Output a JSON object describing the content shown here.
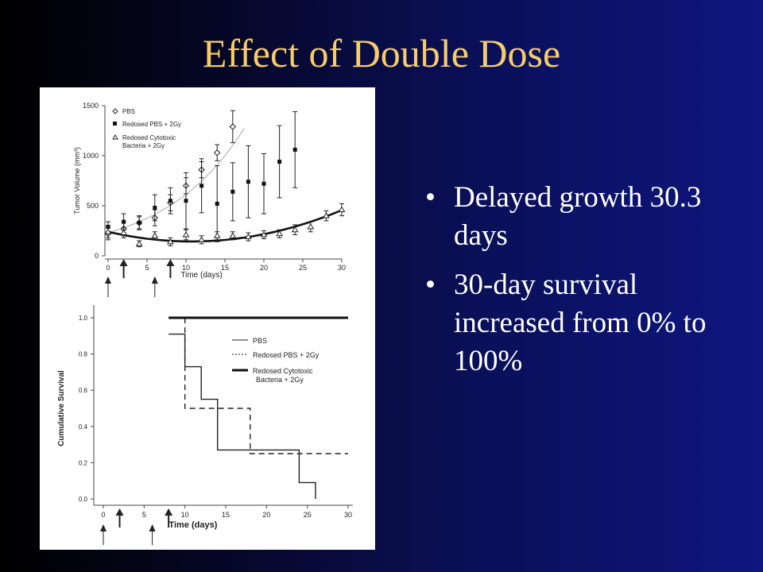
{
  "slide": {
    "title": "Effect of Double Dose",
    "bullets": [
      "Delayed growth 30.3 days",
      "30-day survival increased from 0% to 100%"
    ],
    "bullet_glyph": "•",
    "colors": {
      "title": "#f7cd6b",
      "text": "#ffffff",
      "background_left": "#000000",
      "background_right": "#0e1680"
    }
  },
  "chart_data": [
    {
      "type": "line",
      "xlabel": "Time (days)",
      "ylabel": "Tumor Volume (mm³)",
      "xlim": [
        0,
        30
      ],
      "ylim": [
        0,
        1500
      ],
      "xticks": [
        0,
        5,
        10,
        15,
        20,
        25,
        30
      ],
      "yticks": [
        0,
        500,
        1000,
        1500
      ],
      "treatment_arrow_days": [
        2,
        8
      ],
      "dose_arrow_days": [
        0,
        6
      ],
      "legend": [
        "PBS",
        "Redosed PBS + 2Gy",
        "Redosed Cytotoxic Bacteria + 2Gy"
      ],
      "series": [
        {
          "name": "PBS",
          "marker": "diamond",
          "x": [
            0,
            2,
            4,
            6,
            8,
            10,
            12,
            14,
            16
          ],
          "y": [
            220,
            270,
            330,
            380,
            530,
            700,
            860,
            1030,
            1290
          ],
          "err": [
            60,
            70,
            60,
            80,
            80,
            80,
            80,
            80,
            160
          ]
        },
        {
          "name": "Redosed PBS + 2Gy",
          "marker": "square",
          "x": [
            0,
            2,
            4,
            6,
            8,
            10,
            12,
            14,
            16,
            18,
            20,
            22,
            24
          ],
          "y": [
            290,
            340,
            330,
            480,
            550,
            550,
            700,
            520,
            640,
            740,
            720,
            940,
            1060
          ],
          "err": [
            50,
            80,
            70,
            130,
            130,
            280,
            270,
            380,
            290,
            360,
            300,
            360,
            380
          ]
        },
        {
          "name": "Redosed Cytotoxic Bacteria + 2Gy",
          "marker": "triangle",
          "x": [
            0,
            2,
            4,
            6,
            8,
            10,
            12,
            14,
            16,
            18,
            20,
            22,
            24,
            26,
            28,
            30
          ],
          "y": [
            240,
            230,
            120,
            200,
            140,
            210,
            160,
            200,
            200,
            190,
            210,
            220,
            260,
            290,
            400,
            460
          ],
          "err": [
            60,
            50,
            30,
            40,
            40,
            50,
            40,
            40,
            40,
            40,
            40,
            40,
            50,
            50,
            50,
            60
          ]
        }
      ]
    },
    {
      "type": "line",
      "xlabel": "Time (days)",
      "ylabel": "Cumulative Survival",
      "xlim": [
        0,
        30
      ],
      "ylim": [
        0,
        1.0
      ],
      "xticks": [
        0,
        5,
        10,
        15,
        20,
        25,
        30
      ],
      "yticks": [
        0.0,
        0.2,
        0.4,
        0.6,
        0.8,
        1.0
      ],
      "ytick_labels": [
        "0.0",
        "0.2",
        "0.4",
        "0.6",
        "0.8",
        "1.0"
      ],
      "treatment_arrow_days": [
        2,
        8
      ],
      "dose_arrow_days": [
        0,
        6
      ],
      "legend": [
        "PBS",
        "Redosed PBS + 2Gy",
        "Redosed Cytotoxic Bacteria + 2Gy"
      ],
      "series": [
        {
          "name": "PBS",
          "style": "solid-thin",
          "steps": [
            [
              8,
              0.91
            ],
            [
              10,
              0.73
            ],
            [
              12,
              0.55
            ],
            [
              14,
              0.27
            ],
            [
              24,
              0.09
            ],
            [
              26,
              0.0
            ]
          ]
        },
        {
          "name": "Redosed PBS + 2Gy",
          "style": "dashed",
          "steps": [
            [
              10,
              1.0
            ],
            [
              10,
              0.5
            ],
            [
              18,
              0.25
            ],
            [
              30,
              0.25
            ]
          ]
        },
        {
          "name": "Redosed Cytotoxic Bacteria + 2Gy",
          "style": "solid-thick",
          "steps": [
            [
              8,
              1.0
            ],
            [
              30,
              1.0
            ]
          ]
        }
      ]
    }
  ]
}
